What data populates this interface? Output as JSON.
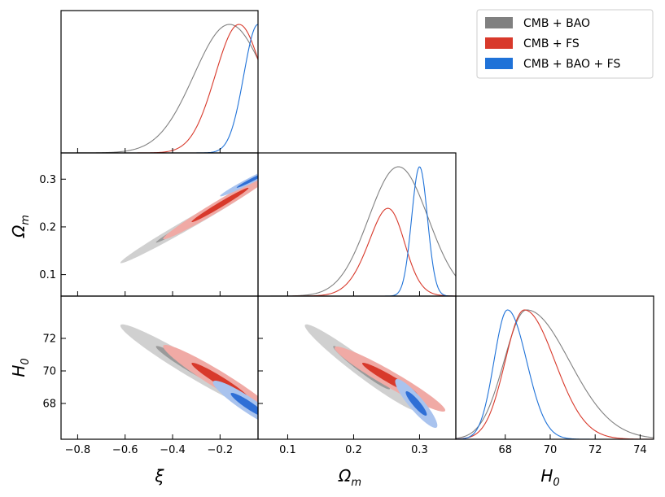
{
  "chart_data": {
    "type": "corner",
    "title": "",
    "legend": {
      "placement": "top-right",
      "entries": [
        {
          "label": "CMB + BAO",
          "color": "#808080"
        },
        {
          "label": "CMB + FS",
          "color": "#d8392b"
        },
        {
          "label": "CMB + BAO + FS",
          "color": "#1f72d8"
        }
      ]
    },
    "parameters": [
      {
        "key": "xi",
        "label": "ξ",
        "range": [
          -0.87,
          -0.04
        ],
        "ticks": [
          -0.8,
          -0.6,
          -0.4,
          -0.2
        ],
        "tick_labels": [
          "−0.8",
          "−0.6",
          "−0.4",
          "−0.2"
        ]
      },
      {
        "key": "om",
        "label": "Ω",
        "label_sub": "m",
        "range": [
          0.055,
          0.355
        ],
        "ticks": [
          0.1,
          0.2,
          0.3
        ],
        "tick_labels": [
          "0.1",
          "0.2",
          "0.3"
        ]
      },
      {
        "key": "h0",
        "label": "H",
        "label_sub": "0",
        "range": [
          65.8,
          74.6
        ],
        "ticks": [
          68,
          70,
          72,
          74
        ],
        "tick_labels": [
          "68",
          "70",
          "72",
          "74"
        ],
        "y_ticks": [
          68,
          70,
          72
        ],
        "y_tick_labels": [
          "68",
          "70",
          "72"
        ]
      }
    ],
    "series": [
      {
        "name": "CMB + BAO",
        "color": "#808080",
        "light": "#d0d0d0",
        "dark": "#9a9a9a",
        "filled": false,
        "marginals": {
          "xi": {
            "mean": -0.16,
            "sd": 0.15
          },
          "om": {
            "mean": 0.268,
            "sd": 0.045
          },
          "h0": {
            "mean": 68.95,
            "sdLeft": 1.0,
            "sdRight": 1.9
          }
        },
        "contours": {
          "xi_om": {
            "mean": [
              -0.32,
              0.21
            ],
            "sd": [
              0.15,
              0.043
            ],
            "rho": 0.99
          },
          "xi_h0": {
            "mean": [
              -0.32,
              70.2
            ],
            "sd": [
              0.15,
              1.33
            ],
            "rho": -0.97
          },
          "om_h0": {
            "mean": [
              0.212,
              70.2
            ],
            "sd": [
              0.043,
              1.33
            ],
            "rho": -0.97
          }
        }
      },
      {
        "name": "CMB + FS",
        "color": "#d8392b",
        "light": "#f0aaa5",
        "dark": "#d8392b",
        "filled": true,
        "marginals": {
          "xi": {
            "mean": -0.12,
            "sd": 0.1
          },
          "om": {
            "mean": 0.272,
            "sd": 0.038,
            "skew": -1.5
          },
          "h0": {
            "mean": 68.85,
            "sdLeft": 0.85,
            "sdRight": 1.35
          }
        },
        "contours": {
          "xi_om": {
            "mean": [
              -0.2,
              0.246
            ],
            "sd": [
              0.12,
              0.036
            ],
            "rho": 0.985
          },
          "xi_h0": {
            "mean": [
              -0.2,
              69.4
            ],
            "sd": [
              0.12,
              1.1
            ],
            "rho": -0.96
          },
          "om_h0": {
            "mean": [
              0.255,
              69.5
            ],
            "sd": [
              0.042,
              1.0
            ],
            "rho": -0.96
          }
        }
      },
      {
        "name": "CMB + BAO + FS",
        "color": "#1f72d8",
        "light": "#a9c3ee",
        "dark": "#2f6fd6",
        "filled": true,
        "marginals": {
          "xi": {
            "mean": -0.04,
            "sd": 0.06
          },
          "om": {
            "mean": 0.3,
            "sd": 0.012
          },
          "h0": {
            "mean": 68.1,
            "sdLeft": 0.6,
            "sdRight": 0.85
          }
        },
        "contours": {
          "xi_om": {
            "mean": [
              -0.06,
              0.3
            ],
            "sd": [
              0.07,
              0.018
            ],
            "rho": 0.98
          },
          "xi_h0": {
            "mean": [
              -0.08,
              67.9
            ],
            "sd": [
              0.075,
              0.75
            ],
            "rho": -0.93
          },
          "om_h0": {
            "mean": [
              0.295,
              68.0
            ],
            "sd": [
              0.016,
              0.75
            ],
            "rho": -0.9
          }
        }
      }
    ]
  }
}
